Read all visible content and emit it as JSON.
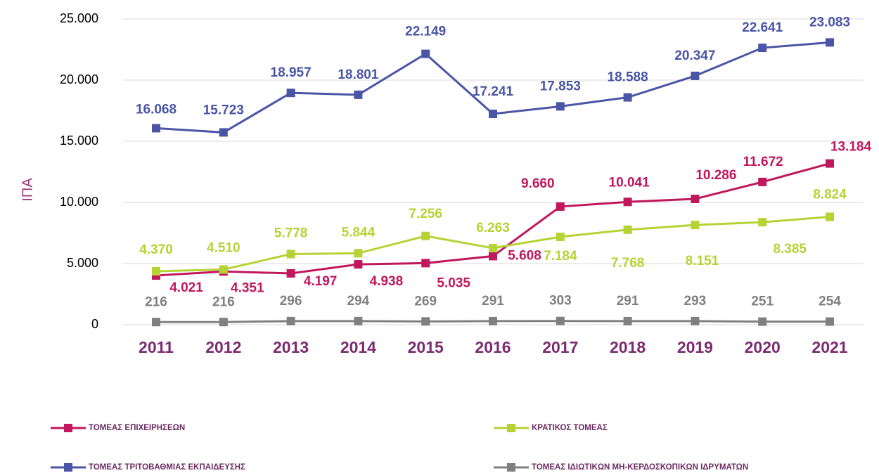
{
  "chart_data": {
    "type": "line",
    "y_label": "ΙΠΑ",
    "categories": [
      "2011",
      "2012",
      "2013",
      "2014",
      "2015",
      "2016",
      "2017",
      "2018",
      "2019",
      "2020",
      "2021"
    ],
    "ylim": [
      0,
      25000
    ],
    "yticks": [
      0,
      {
        "value": 5000,
        "label": "5.000"
      },
      {
        "value": 10000,
        "label": "10.000"
      },
      {
        "value": 15000,
        "label": "15.000"
      },
      {
        "value": 20000,
        "label": "20.000"
      },
      {
        "value": 25000,
        "label": "25.000"
      }
    ],
    "grid": true,
    "series": [
      {
        "name": "ΤΟΜΕΑΣ ΕΠΙΧΕΙΡΗΣΕΩΝ",
        "color": "#c0175d",
        "values": [
          4021,
          4351,
          4197,
          4938,
          5035,
          5608,
          9660,
          10041,
          10286,
          11672,
          13184
        ],
        "value_labels": [
          "4.021",
          "4.351",
          "4.197",
          "4.938",
          "5.035",
          "5.608",
          "9.660",
          "10.041",
          "10.286",
          "11.672",
          "13.184"
        ]
      },
      {
        "name": "ΚΡΑΤΙΚΟΣ ΤΟΜΕΑΣ",
        "color": "#b5d334",
        "values": [
          4370,
          4510,
          5778,
          5844,
          7256,
          6263,
          7184,
          7768,
          8151,
          8385,
          8824
        ],
        "value_labels": [
          "4.370",
          "4.510",
          "5.778",
          "5.844",
          "7.256",
          "6.263",
          "7.184",
          "7.768",
          "8.151",
          "8.385",
          "8.824"
        ]
      },
      {
        "name": "ΤΟΜΕΑΣ ΤΡΙΤΟΒΑΘΜΙΑΣ ΕΚΠΑΙΔΕΥΣΗΣ",
        "color": "#4a55a6",
        "values": [
          16068,
          15723,
          18957,
          18801,
          22149,
          17241,
          17853,
          18588,
          20347,
          22641,
          23083
        ],
        "value_labels": [
          "16.068",
          "15.723",
          "18.957",
          "18.801",
          "22.149",
          "17.241",
          "17.853",
          "18.588",
          "20.347",
          "22.641",
          "23.083"
        ]
      },
      {
        "name": "ΤΟΜΕΑΣ ΙΔΙΩΤΙΚΩΝ ΜΗ-ΚΕΡΔΟΣΚΟΠΙΚΩΝ ΙΔΡΥΜΑΤΩΝ",
        "color": "#808080",
        "values": [
          216,
          216,
          296,
          294,
          269,
          291,
          303,
          291,
          293,
          251,
          254
        ]
      }
    ]
  }
}
